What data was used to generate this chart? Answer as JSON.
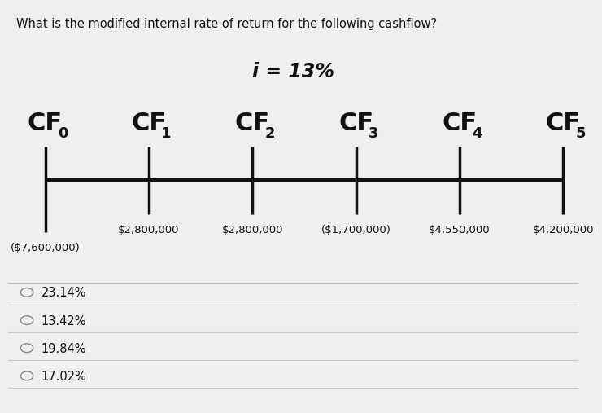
{
  "title": "What is the modified internal rate of return for the following cashflow?",
  "interest_label": "i = 13%",
  "cf_labels_main": [
    "CF",
    "CF",
    "CF",
    "CF",
    "CF",
    "CF"
  ],
  "cf_labels_sub": [
    "0",
    "1",
    "2",
    "3",
    "4",
    "5"
  ],
  "cf_values": [
    "($7,600,000)",
    "$2,800,000",
    "$2,800,000",
    "($1,700,000)",
    "$4,550,000",
    "$4,200,000"
  ],
  "options": [
    "23.14%",
    "13.42%",
    "19.84%",
    "17.02%"
  ],
  "bg_color": "#f0efee",
  "text_color": "#111111",
  "line_color": "#111111",
  "title_fontsize": 10.5,
  "interest_fontsize": 17,
  "cf_main_fontsize": 22,
  "cf_sub_fontsize": 13,
  "cf_value_fontsize": 9.5,
  "option_fontsize": 10.5
}
